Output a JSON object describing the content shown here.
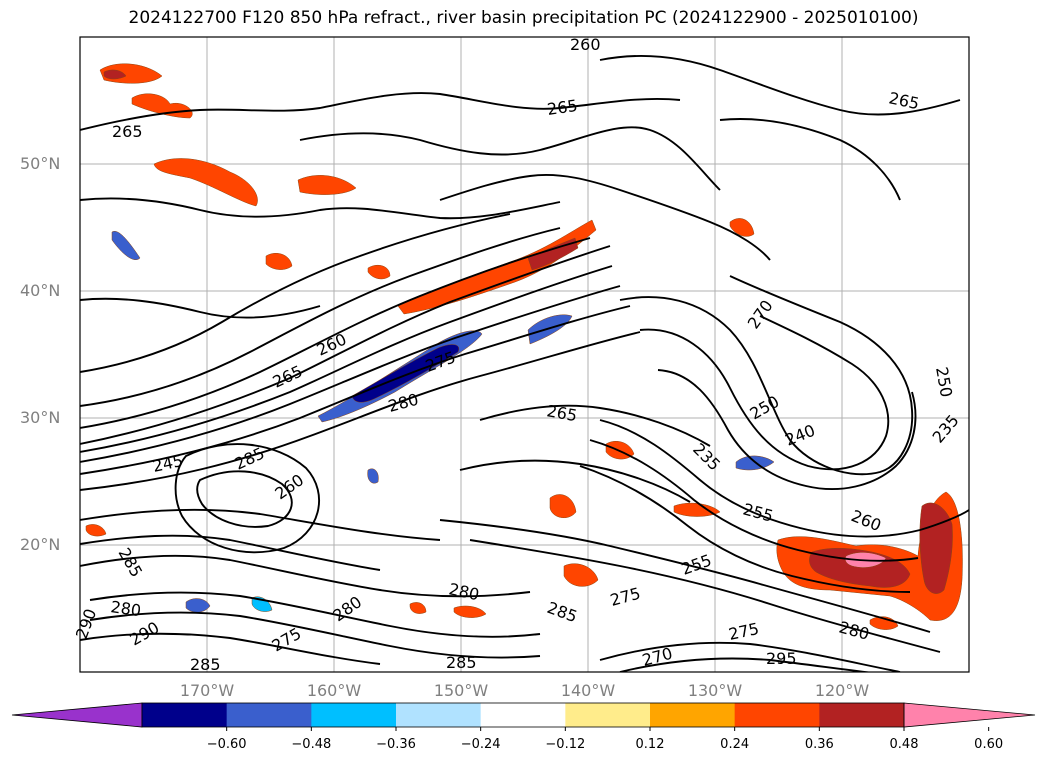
{
  "title": "2024122700 F120 850 hPa refract., river basin precipitation PC (2024122900 - 2025010100)",
  "lat_labels": [
    {
      "text": "50°N",
      "lat": 50
    },
    {
      "text": "40°N",
      "lat": 40
    },
    {
      "text": "30°N",
      "lat": 30
    },
    {
      "text": "20°N",
      "lat": 20
    }
  ],
  "lon_labels": [
    {
      "text": "170°W",
      "lon": -170
    },
    {
      "text": "160°W",
      "lon": -160
    },
    {
      "text": "150°W",
      "lon": -150
    },
    {
      "text": "140°W",
      "lon": -140
    },
    {
      "text": "130°W",
      "lon": -130
    },
    {
      "text": "120°W",
      "lon": -120
    }
  ],
  "map_extent": {
    "lon_min": -180,
    "lon_max": -110,
    "lat_min": 10,
    "lat_max": 60
  },
  "grid": true,
  "contour_labels": [
    "260",
    "265",
    "265",
    "265",
    "260",
    "265",
    "275",
    "280",
    "265",
    "270",
    "250",
    "240",
    "235",
    "255",
    "260",
    "245",
    "285",
    "260",
    "255",
    "280",
    "280",
    "285",
    "275",
    "275",
    "280",
    "285",
    "275",
    "270",
    "290",
    "295",
    "280",
    "285",
    "290",
    "285",
    "250",
    "235"
  ],
  "colorbar": {
    "colors": [
      "#9932cc",
      "#00008b",
      "#3a5fcd",
      "#00bfff",
      "#b0e2ff",
      "#ffffff",
      "#ffec8b",
      "#ffa500",
      "#ff4500",
      "#b22222",
      "#ff82ab"
    ],
    "tick_labels": [
      "−0.60",
      "−0.48",
      "−0.36",
      "−0.24",
      "−0.12",
      "0.12",
      "0.24",
      "0.36",
      "0.48",
      "0.60"
    ],
    "extend": "both"
  }
}
